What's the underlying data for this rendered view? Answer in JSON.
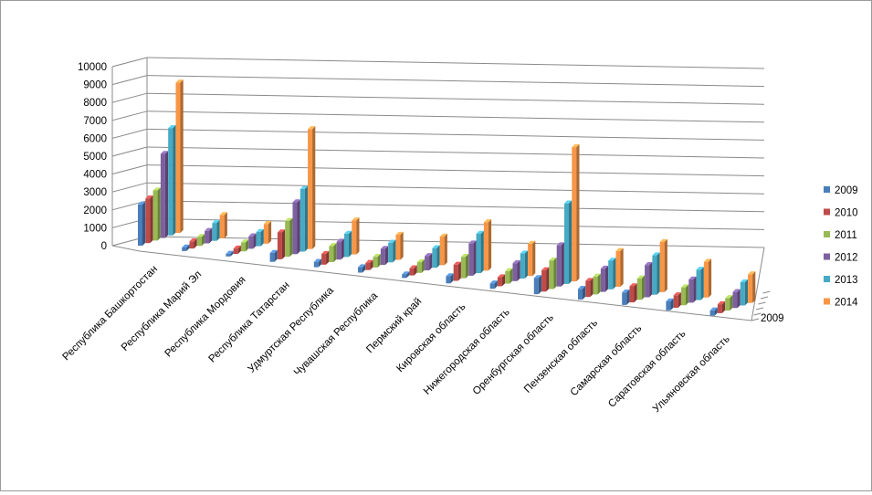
{
  "chart_data": {
    "type": "bar",
    "subtype": "3d-column",
    "title": "",
    "xlabel": "",
    "ylabel": "",
    "ylim": [
      0,
      10000
    ],
    "yticks": [
      "0",
      "1000",
      "2000",
      "3000",
      "4000",
      "5000",
      "6000",
      "7000",
      "8000",
      "9000",
      "10000"
    ],
    "depth_axis_label": "2009",
    "grid": true,
    "legend_position": "right",
    "categories": [
      "Республика Башкортостан",
      "Республика Марий Эл",
      "Республика Мордовия",
      "Республика Татарстан",
      "Удмуртская Республика",
      "Чувашская Республика",
      "Пермский край",
      "Кировская область",
      "Нижегородская область",
      "Оренбургская область",
      "Пензенская область",
      "Самарская область",
      "Саратовская область",
      "Ульяновская область"
    ],
    "series": [
      {
        "name": "2009",
        "color": "#4a7ebb",
        "values": [
          2300,
          200,
          150,
          500,
          300,
          300,
          200,
          400,
          300,
          900,
          600,
          700,
          500,
          300
        ]
      },
      {
        "name": "2010",
        "color": "#be4b48",
        "values": [
          2500,
          400,
          300,
          1500,
          600,
          400,
          400,
          900,
          500,
          1200,
          900,
          900,
          700,
          500
        ]
      },
      {
        "name": "2011",
        "color": "#98b954",
        "values": [
          2800,
          500,
          500,
          2000,
          900,
          600,
          600,
          1200,
          700,
          1600,
          1000,
          1200,
          1000,
          700
        ]
      },
      {
        "name": "2012",
        "color": "#7d60a0",
        "values": [
          4700,
          700,
          700,
          2900,
          1000,
          900,
          800,
          1800,
          1000,
          2300,
          1300,
          1800,
          1300,
          900
        ]
      },
      {
        "name": "2013",
        "color": "#46aac4",
        "values": [
          6000,
          1000,
          800,
          3500,
          1300,
          1100,
          1100,
          2200,
          1400,
          4500,
          1600,
          2200,
          1700,
          1300
        ]
      },
      {
        "name": "2014",
        "color": "#f79646",
        "values": [
          8400,
          1300,
          1100,
          6700,
          1900,
          1400,
          1600,
          2700,
          1800,
          7500,
          2000,
          2800,
          2000,
          1600
        ]
      }
    ]
  }
}
